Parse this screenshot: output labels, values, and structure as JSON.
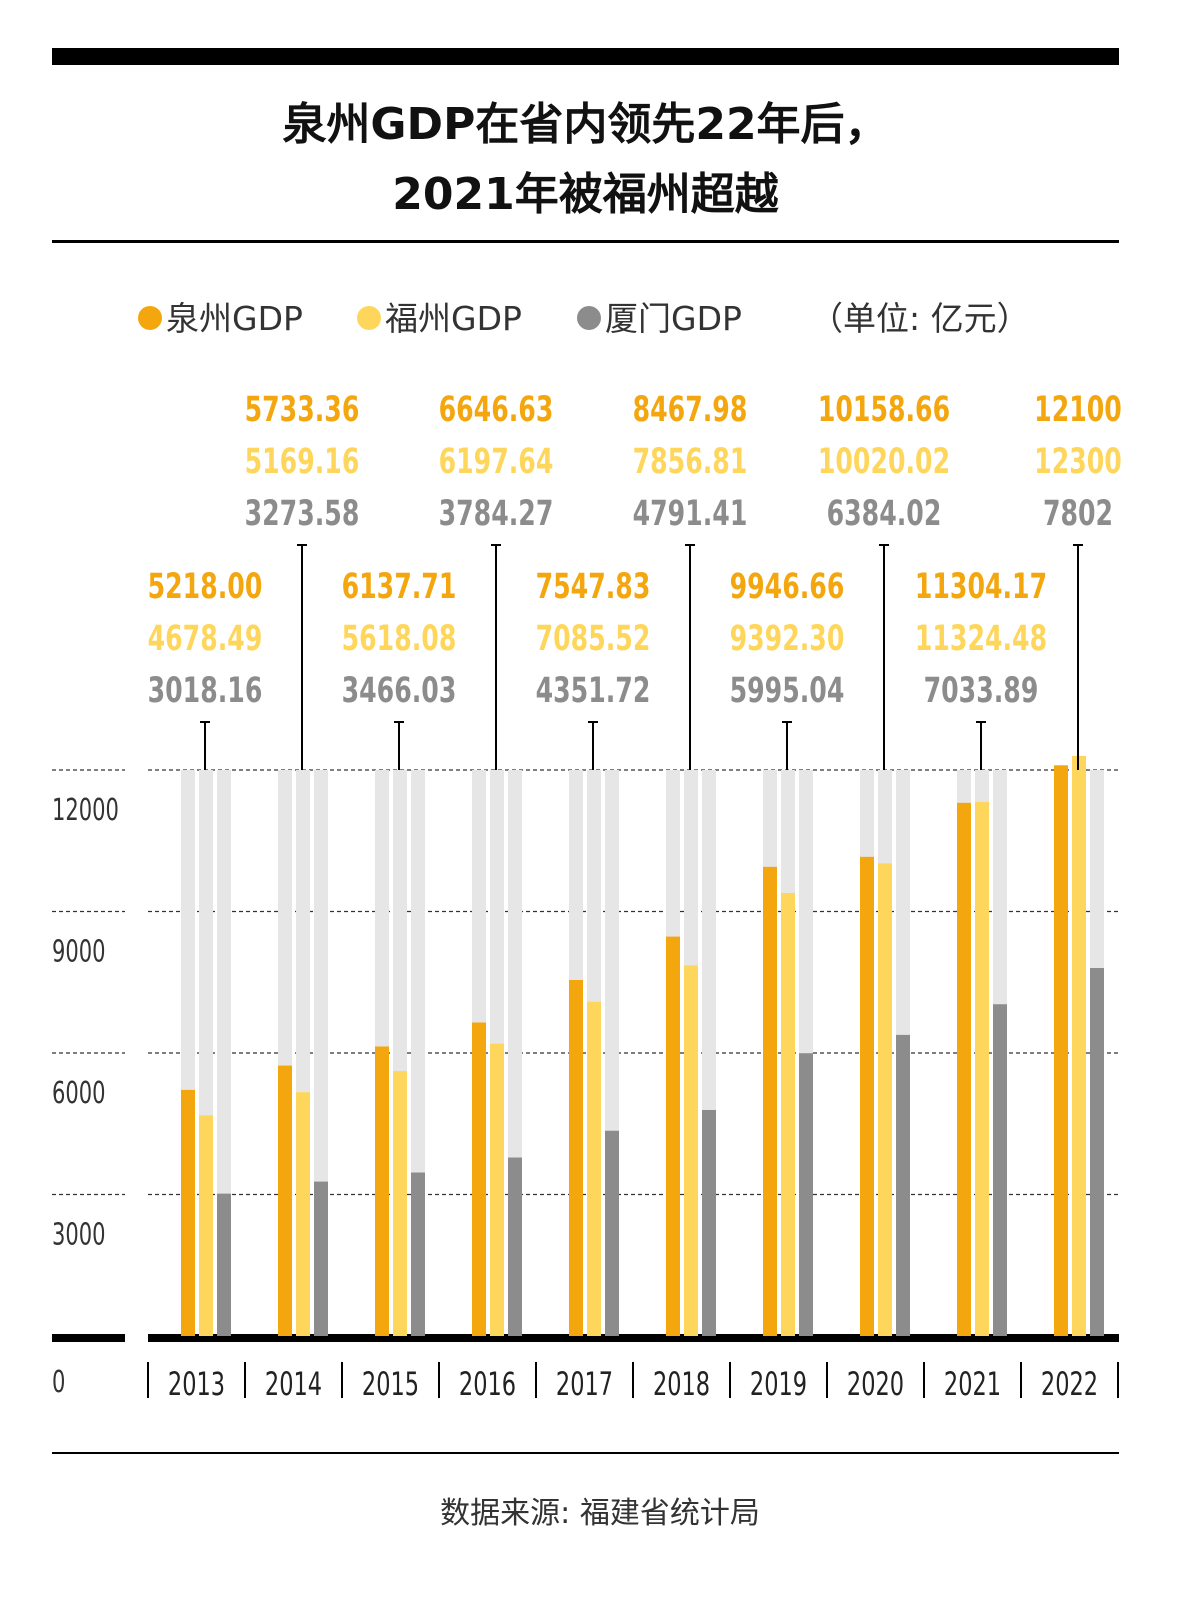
{
  "header": {
    "title_line1": "泉州GDP在省内领先22年后，",
    "title_line2": "2021年被福州超越"
  },
  "legend": {
    "items": [
      {
        "label": "泉州GDP",
        "color": "#F4A60E"
      },
      {
        "label": "福州GDP",
        "color": "#FFD65C"
      },
      {
        "label": "厦门GDP",
        "color": "#8C8C8C"
      }
    ],
    "unit": "（单位: 亿元）"
  },
  "footer": {
    "source": "数据来源: 福建省统计局"
  },
  "chart_data": {
    "type": "bar",
    "categories": [
      "2013",
      "2014",
      "2015",
      "2016",
      "2017",
      "2018",
      "2019",
      "2020",
      "2021",
      "2022"
    ],
    "series": [
      {
        "name": "泉州GDP",
        "color": "#F4A60E",
        "values": [
          5218.0,
          5733.36,
          6137.71,
          6646.63,
          7547.83,
          8467.98,
          9946.66,
          10158.66,
          11304.17,
          12100
        ],
        "labels": [
          "5218.00",
          "5733.36",
          "6137.71",
          "6646.63",
          "7547.83",
          "8467.98",
          "9946.66",
          "10158.66",
          "11304.17",
          "12100"
        ]
      },
      {
        "name": "福州GDP",
        "color": "#FFD65C",
        "values": [
          4678.49,
          5169.16,
          5618.08,
          6197.64,
          7085.52,
          7856.81,
          9392.3,
          10020.02,
          11324.48,
          12300
        ],
        "labels": [
          "4678.49",
          "5169.16",
          "5618.08",
          "6197.64",
          "7085.52",
          "7856.81",
          "9392.30",
          "10020.02",
          "11324.48",
          "12300"
        ]
      },
      {
        "name": "厦门GDP",
        "color": "#8C8C8C",
        "values": [
          3018.16,
          3273.58,
          3466.03,
          3784.27,
          4351.72,
          4791.41,
          5995.04,
          6384.02,
          7033.89,
          7802
        ],
        "labels": [
          "3018.16",
          "3273.58",
          "3466.03",
          "3784.27",
          "4351.72",
          "4791.41",
          "5995.04",
          "6384.02",
          "7033.89",
          "7802"
        ]
      }
    ],
    "yticks": [
      0,
      3000,
      6000,
      9000,
      12000
    ],
    "ytick_labels": [
      "0",
      "3000",
      "6000",
      "9000",
      "12000"
    ],
    "ylim": [
      0,
      12000
    ],
    "grid": true,
    "background_track_color": "#E6E6E6",
    "legend_position": "top"
  }
}
